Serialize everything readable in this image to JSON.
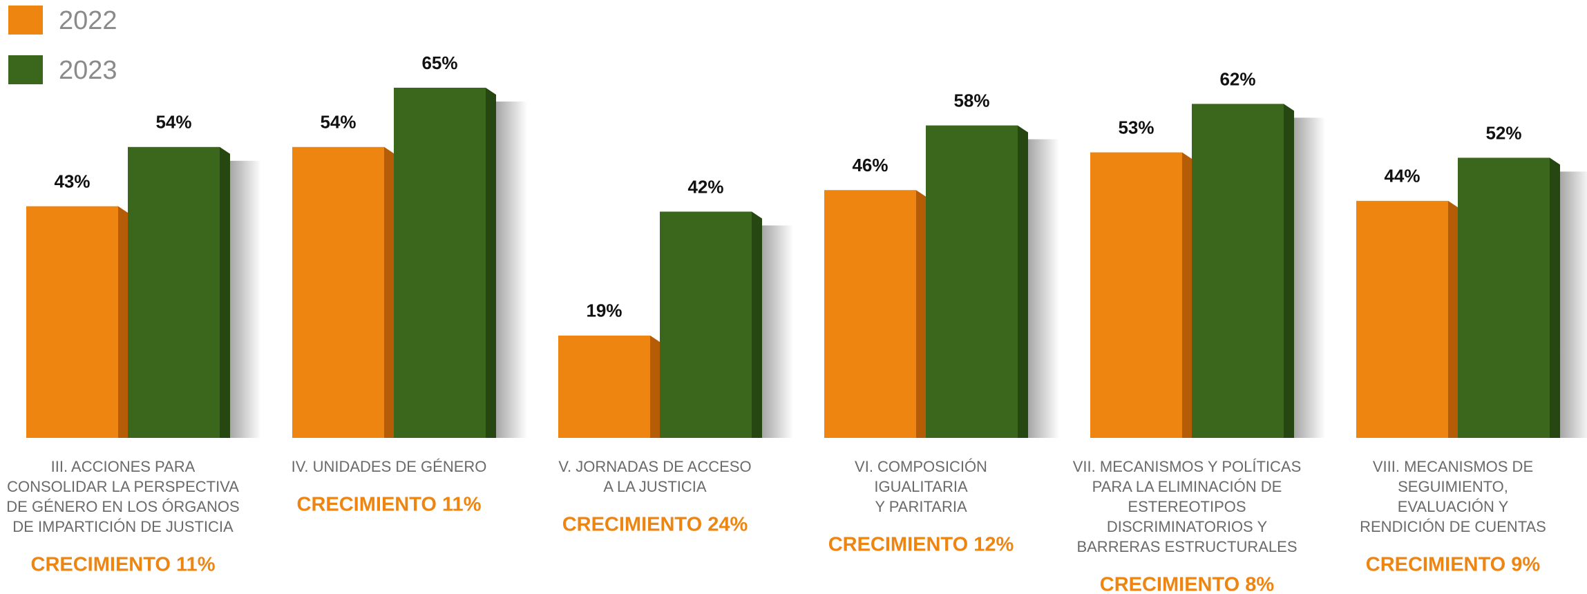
{
  "chart_data": {
    "type": "bar",
    "categories": [
      [
        "III. ACCIONES PARA",
        "CONSOLIDAR LA PERSPECTIVA",
        "DE GÉNERO EN LOS ÓRGANOS",
        "DE IMPARTICIÓN DE JUSTICIA"
      ],
      [
        "IV. UNIDADES DE GÉNERO"
      ],
      [
        "V. JORNADAS DE ACCESO",
        "A LA JUSTICIA"
      ],
      [
        "VI. COMPOSICIÓN",
        "IGUALITARIA",
        "Y PARITARIA"
      ],
      [
        "VII. MECANISMOS Y POLÍTICAS",
        "PARA LA ELIMINACIÓN DE",
        "ESTEREOTIPOS",
        "DISCRIMINATORIOS Y",
        "BARRERAS ESTRUCTURALES"
      ],
      [
        "VIII. MECANISMOS DE",
        "SEGUIMIENTO,",
        "EVALUACIÓN Y",
        "RENDICIÓN DE CUENTAS"
      ]
    ],
    "series": [
      {
        "name": "2022",
        "color": "#ee8510",
        "side_color": "#b55c07",
        "values": [
          43,
          54,
          19,
          46,
          53,
          44
        ],
        "value_labels": [
          "43%",
          "54%",
          "19%",
          "46%",
          "53%",
          "44%"
        ]
      },
      {
        "name": "2023",
        "color": "#3b671c",
        "side_color": "#274712",
        "values": [
          54,
          65,
          42,
          58,
          62,
          52
        ],
        "value_labels": [
          "54%",
          "65%",
          "42%",
          "58%",
          "62%",
          "52%"
        ]
      }
    ],
    "annotations": [
      "CRECIMIENTO 11%",
      "CRECIMIENTO 11%",
      "CRECIMIENTO 24%",
      "CRECIMIENTO 12%",
      "CRECIMIENTO 8%",
      "CRECIMIENTO 9%"
    ],
    "annotation_color": "#ee8510",
    "legend": "top-left"
  }
}
